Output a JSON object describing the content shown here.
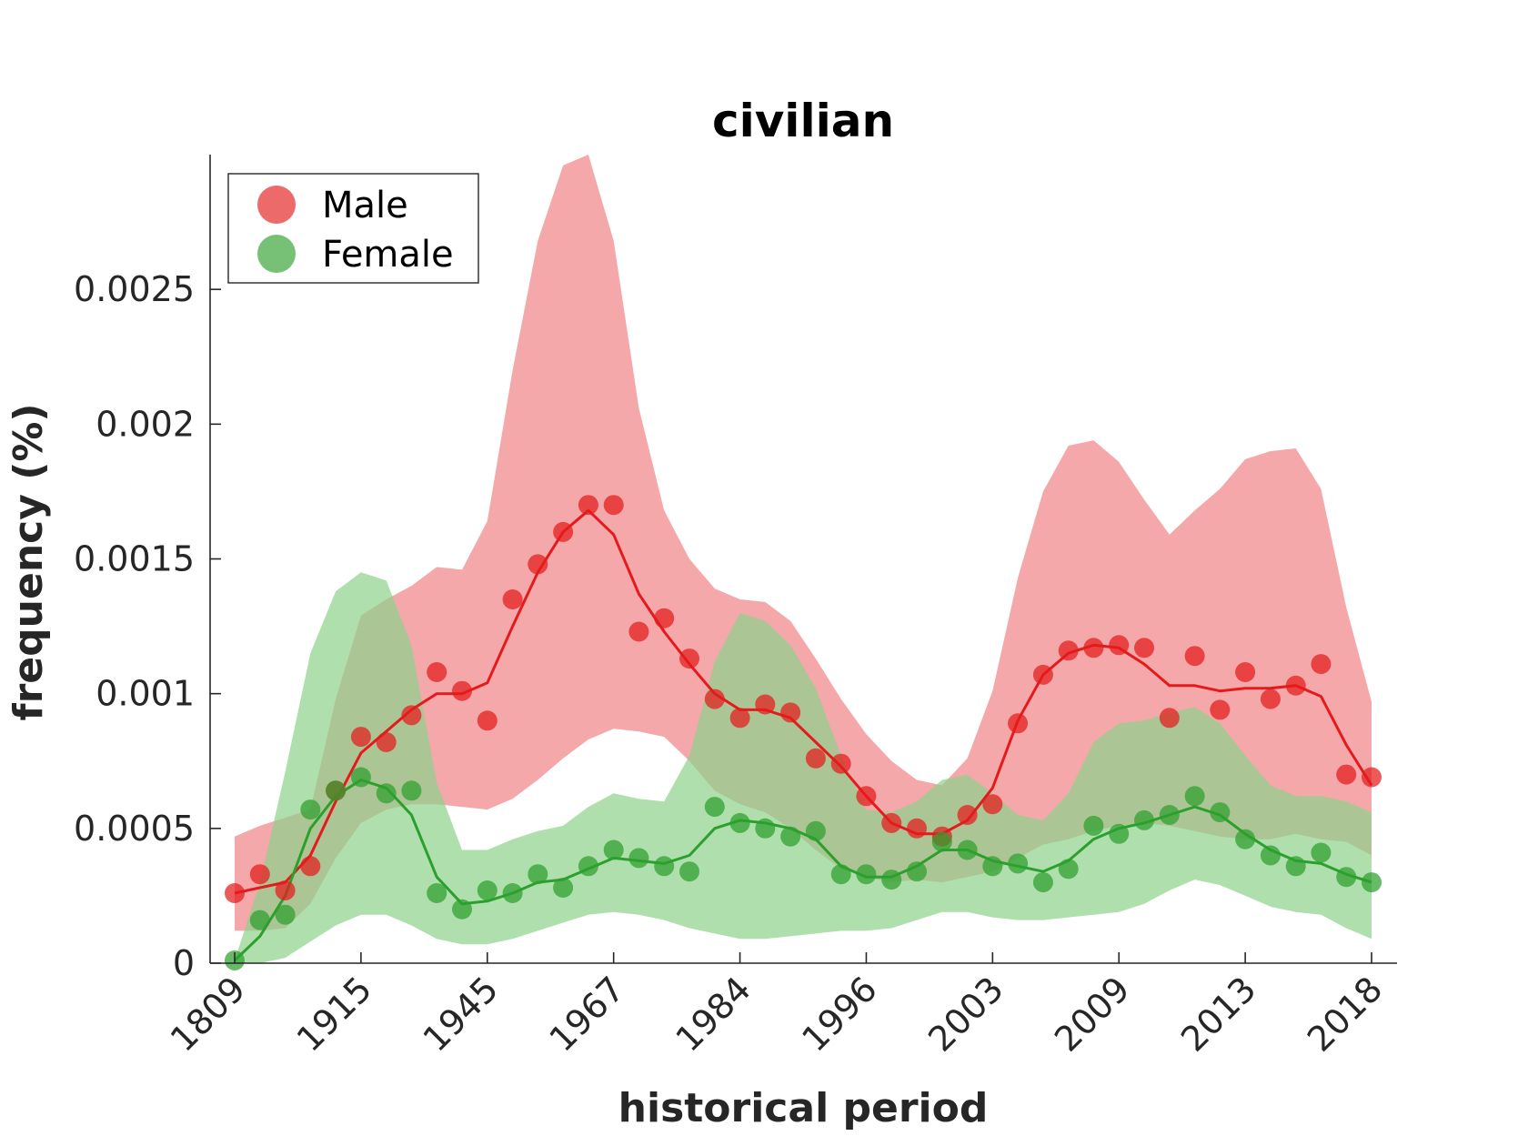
{
  "chart_data": {
    "type": "line",
    "title": "civilian",
    "xlabel": "historical period",
    "ylabel": "frequency (%)",
    "x_tick_labels": [
      "1809",
      "1915",
      "1945",
      "1967",
      "1984",
      "1996",
      "2003",
      "2009",
      "2013",
      "2018"
    ],
    "x_tick_index": [
      0,
      5,
      10,
      15,
      20,
      25,
      30,
      35,
      40,
      45
    ],
    "n_points": 46,
    "y_ticks": [
      0,
      0.0005,
      0.001,
      0.0015,
      0.002,
      0.0025
    ],
    "y_tick_labels": [
      "0",
      "0.0005",
      "0.001",
      "0.0015",
      "0.002",
      "0.0025"
    ],
    "ylim": [
      0,
      0.003
    ],
    "grid": false,
    "legend_position": "top-left",
    "series": [
      {
        "name": "Male",
        "color": "#e41a1c",
        "band_color": "#f4a3a5",
        "points": [
          0.00026,
          0.00033,
          0.00027,
          0.00036,
          0.00064,
          0.00084,
          0.00082,
          0.00092,
          0.00108,
          0.00101,
          0.0009,
          0.00135,
          0.00148,
          0.0016,
          0.0017,
          0.0017,
          0.00123,
          0.00128,
          0.00113,
          0.00098,
          0.00091,
          0.00096,
          0.00093,
          0.00076,
          0.00074,
          0.00062,
          0.00052,
          0.0005,
          0.00047,
          0.00055,
          0.00059,
          0.00089,
          0.00107,
          0.00116,
          0.00117,
          0.00118,
          0.00117,
          0.00091,
          0.00114,
          0.00094,
          0.00108,
          0.00098,
          0.00103,
          0.00111,
          0.0007,
          0.00069
        ],
        "smooth": [
          0.00026,
          0.00028,
          0.0003,
          0.0004,
          0.0006,
          0.00078,
          0.00086,
          0.00094,
          0.001,
          0.001,
          0.00104,
          0.00125,
          0.00145,
          0.0016,
          0.00168,
          0.00159,
          0.00137,
          0.00123,
          0.00111,
          0.001,
          0.00094,
          0.00094,
          0.00091,
          0.00082,
          0.00073,
          0.00062,
          0.00052,
          0.00048,
          0.00048,
          0.00053,
          0.00065,
          0.0009,
          0.00107,
          0.00115,
          0.00118,
          0.00117,
          0.00111,
          0.00103,
          0.00103,
          0.00101,
          0.00102,
          0.00102,
          0.00103,
          0.00099,
          0.00081,
          0.00066
        ],
        "upper": [
          0.00047,
          0.00051,
          0.00054,
          0.00057,
          0.00098,
          0.00129,
          0.00135,
          0.0014,
          0.00147,
          0.00146,
          0.00164,
          0.0022,
          0.00268,
          0.00296,
          0.003,
          0.00268,
          0.00206,
          0.00168,
          0.0015,
          0.00139,
          0.00135,
          0.00134,
          0.00127,
          0.00113,
          0.00098,
          0.00085,
          0.00075,
          0.00068,
          0.00066,
          0.00076,
          0.00101,
          0.00143,
          0.00175,
          0.00192,
          0.00194,
          0.00186,
          0.00172,
          0.00159,
          0.00168,
          0.00176,
          0.00187,
          0.0019,
          0.00191,
          0.00176,
          0.00132,
          0.00097
        ],
        "lower": [
          0.00012,
          0.00012,
          0.00013,
          0.00022,
          0.00039,
          0.00052,
          0.00057,
          0.00059,
          0.00059,
          0.00058,
          0.00057,
          0.00061,
          0.00068,
          0.00076,
          0.00083,
          0.00087,
          0.00086,
          0.00084,
          0.00075,
          0.00064,
          0.00059,
          0.00056,
          0.0005,
          0.00042,
          0.00035,
          0.00032,
          0.0003,
          0.00031,
          0.0003,
          0.00032,
          0.00034,
          0.00039,
          0.00044,
          0.00046,
          0.00049,
          0.00051,
          0.00052,
          0.00051,
          0.00049,
          0.00047,
          0.00046,
          0.00046,
          0.00048,
          0.00046,
          0.00045,
          0.0004
        ]
      },
      {
        "name": "Female",
        "color": "#2ca02c",
        "band_color": "#8dd18a",
        "points": [
          1e-05,
          0.00016,
          0.00018,
          0.00057,
          0.00064,
          0.00069,
          0.00063,
          0.00064,
          0.00026,
          0.0002,
          0.00027,
          0.00026,
          0.00033,
          0.00028,
          0.00036,
          0.00042,
          0.00039,
          0.00036,
          0.00034,
          0.00058,
          0.00052,
          0.0005,
          0.00047,
          0.00049,
          0.00033,
          0.00033,
          0.00031,
          0.00034,
          0.00045,
          0.00042,
          0.00036,
          0.00037,
          0.0003,
          0.00035,
          0.00051,
          0.00048,
          0.00053,
          0.00055,
          0.00062,
          0.00056,
          0.00046,
          0.0004,
          0.00036,
          0.00041,
          0.00032,
          0.0003
        ],
        "smooth": [
          1e-05,
          0.0001,
          0.00025,
          0.0005,
          0.00062,
          0.00068,
          0.00065,
          0.00055,
          0.00032,
          0.00022,
          0.00023,
          0.00026,
          0.0003,
          0.00031,
          0.00035,
          0.00039,
          0.00038,
          0.00037,
          0.0004,
          0.0005,
          0.00053,
          0.00052,
          0.0005,
          0.00046,
          0.00036,
          0.00032,
          0.00032,
          0.00036,
          0.00042,
          0.00042,
          0.00038,
          0.00036,
          0.00034,
          0.00038,
          0.00046,
          0.0005,
          0.00052,
          0.00055,
          0.00058,
          0.00055,
          0.00048,
          0.00042,
          0.00038,
          0.00037,
          0.00033,
          0.0003
        ],
        "upper": [
          1e-05,
          0.0003,
          0.00071,
          0.00115,
          0.00138,
          0.00145,
          0.00142,
          0.00118,
          0.00067,
          0.00042,
          0.00042,
          0.00046,
          0.00049,
          0.00051,
          0.00058,
          0.00063,
          0.00061,
          0.0006,
          0.00077,
          0.00112,
          0.0013,
          0.00127,
          0.00118,
          0.00102,
          0.00077,
          0.00057,
          0.00056,
          0.0006,
          0.00068,
          0.0007,
          0.00063,
          0.00055,
          0.00053,
          0.00063,
          0.00082,
          0.00089,
          0.0009,
          0.00093,
          0.00095,
          0.00089,
          0.00077,
          0.00066,
          0.00062,
          0.00062,
          0.0006,
          0.00056
        ],
        "lower": [
          0.0,
          0.0,
          2e-05,
          8e-05,
          0.00014,
          0.00018,
          0.00018,
          0.00014,
          9e-05,
          7e-05,
          7e-05,
          9e-05,
          0.00012,
          0.00015,
          0.00018,
          0.00019,
          0.00018,
          0.00016,
          0.00013,
          0.00011,
          9e-05,
          9e-05,
          0.0001,
          0.00011,
          0.00012,
          0.00012,
          0.00013,
          0.00016,
          0.00019,
          0.00019,
          0.00017,
          0.00016,
          0.00016,
          0.00017,
          0.00018,
          0.00019,
          0.00022,
          0.00027,
          0.00031,
          0.00029,
          0.00025,
          0.00021,
          0.00019,
          0.00018,
          0.00013,
          9e-05
        ]
      }
    ]
  }
}
